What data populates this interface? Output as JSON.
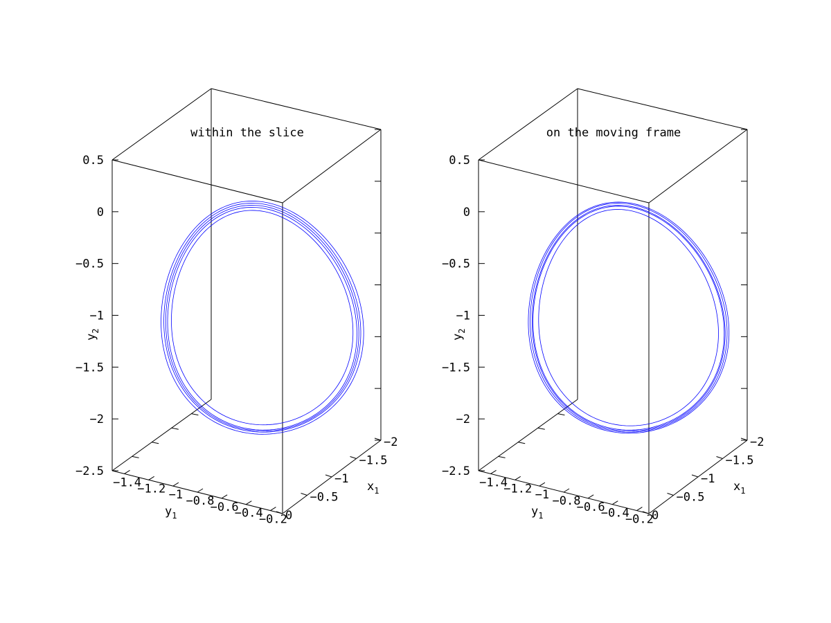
{
  "chart_data": [
    {
      "type": "line",
      "title": "within the slice",
      "xlabel": "x",
      "xlabel_sub": "1",
      "ylabel": "y",
      "ylabel_sub": "1",
      "zlabel": "y",
      "zlabel_sub": "2",
      "xlim": [
        0,
        -2
      ],
      "ylim": [
        -1.4,
        -0.1
      ],
      "zlim": [
        -2.5,
        0.5
      ],
      "x_ticks": [
        "0",
        "−0.5",
        "−1",
        "−1.5",
        "−2"
      ],
      "y_ticks": [
        "−1.4",
        "−1.2",
        "−1",
        "−0.8",
        "−0.6",
        "−0.4",
        "−0.2"
      ],
      "z_ticks": [
        "0.5",
        "0",
        "−0.5",
        "−1",
        "−1.5",
        "−2",
        "−2.5"
      ],
      "color": "#0000ff",
      "grid": false,
      "series": [
        {
          "z_max": 0.07,
          "z_min": -2.12,
          "scale": 1.0
        },
        {
          "z_max": 0.05,
          "z_min": -2.11,
          "scale": 0.98
        },
        {
          "z_max": 0.09,
          "z_min": -2.13,
          "scale": 1.02
        },
        {
          "z_max": 0.02,
          "z_min": -2.06,
          "scale": 0.94
        },
        {
          "z_max": 0.11,
          "z_min": -2.15,
          "scale": 1.05
        }
      ]
    },
    {
      "type": "line",
      "title": "on the moving frame",
      "xlabel": "x",
      "xlabel_sub": "1",
      "ylabel": "y",
      "ylabel_sub": "1",
      "zlabel": "y",
      "zlabel_sub": "2",
      "xlim": [
        0,
        -2
      ],
      "ylim": [
        -1.4,
        -0.1
      ],
      "zlim": [
        -2.5,
        0.5
      ],
      "x_ticks": [
        "0",
        "−0.5",
        "−1",
        "−1.5",
        "−2"
      ],
      "y_ticks": [
        "−1.4",
        "−1.2",
        "−1",
        "−0.8",
        "−0.6",
        "−0.4",
        "−0.2"
      ],
      "z_ticks": [
        "0.5",
        "0",
        "−0.5",
        "−1",
        "−1.5",
        "−2",
        "−2.5"
      ],
      "color": "#0000ff",
      "grid": false,
      "series": [
        {
          "z_max": 0.07,
          "z_min": -2.12,
          "scale": 1.0
        },
        {
          "z_max": 0.06,
          "z_min": -2.11,
          "scale": 0.99
        },
        {
          "z_max": 0.09,
          "z_min": -2.13,
          "scale": 1.02
        },
        {
          "z_max": 0.03,
          "z_min": -2.07,
          "scale": 0.93
        },
        {
          "z_max": 0.1,
          "z_min": -2.14,
          "scale": 1.04
        }
      ]
    }
  ]
}
